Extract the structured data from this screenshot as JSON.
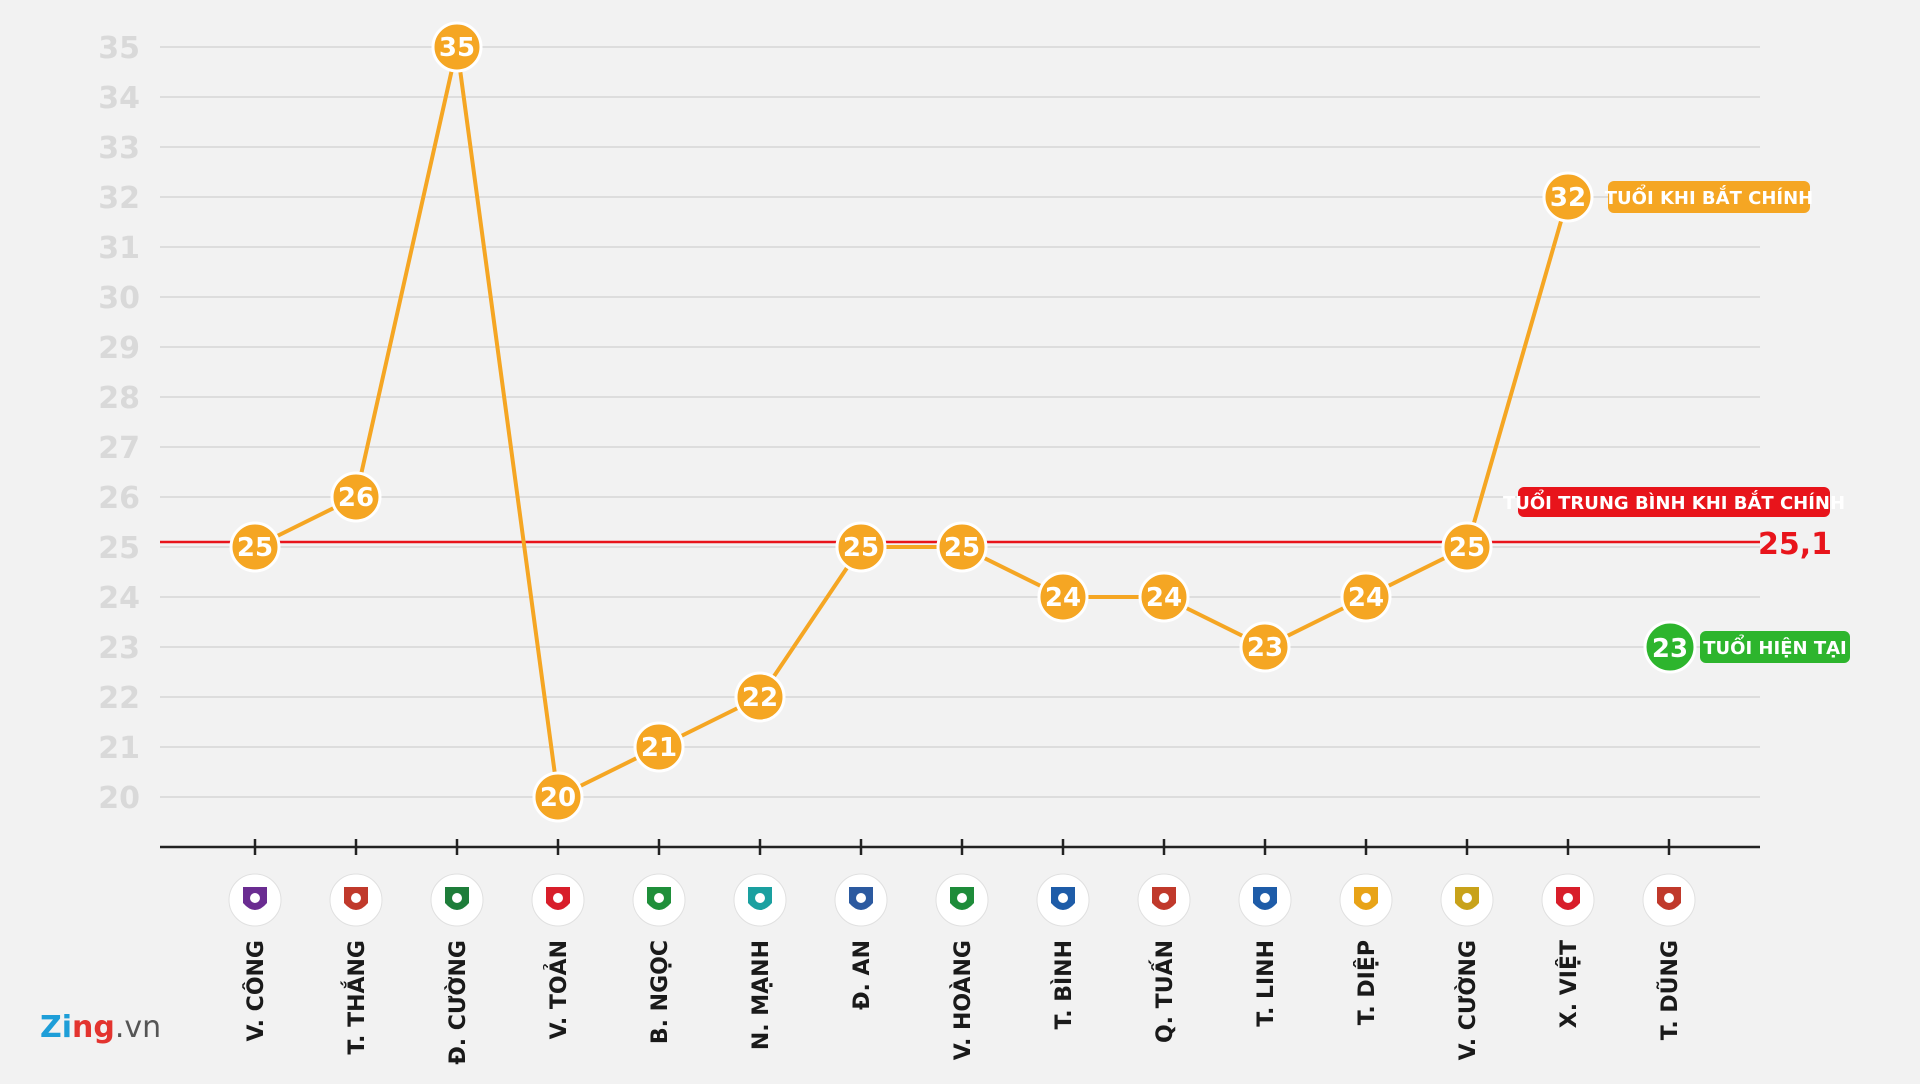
{
  "chart_data": {
    "type": "line",
    "categories": [
      "V. CÔNG",
      "T. THẮNG",
      "Đ. CƯỜNG",
      "V. TOẢN",
      "B. NGỌC",
      "N. MẠNH",
      "Đ. AN",
      "V. HOÀNG",
      "T. BÌNH",
      "Q. TUẤN",
      "T. LINH",
      "T. DIỆP",
      "V. CƯỜNG",
      "X. VIỆT",
      "T. DŨNG"
    ],
    "series": [
      {
        "name": "TUỔI KHI BẮT CHÍNH",
        "values": [
          25,
          26,
          35,
          20,
          21,
          22,
          25,
          25,
          24,
          24,
          23,
          24,
          25,
          32,
          null
        ],
        "color": "#f5a623"
      }
    ],
    "current_age": {
      "label": "TUỔI HIỆN TẠI",
      "value": 23,
      "color": "#2db52d"
    },
    "average": {
      "label": "TUỔI TRUNG BÌNH KHI BẮT CHÍNH",
      "value": 25.1,
      "value_label": "25,1",
      "color": "#e8141b"
    },
    "yticks": [
      20,
      21,
      22,
      23,
      24,
      25,
      26,
      27,
      28,
      29,
      30,
      31,
      32,
      33,
      34,
      35
    ],
    "ylim": [
      19,
      35
    ],
    "grid": true
  },
  "club_logos": [
    "hanoi-club-logo",
    "tphcm-club-logo",
    "becamex-binhduong-logo",
    "hai-phong-logo",
    "hagl-logo",
    "viettel-logo",
    "song-lam-nghe-an-logo",
    "slna-logo",
    "da-nang-logo",
    "hong-linh-ha-tinh-logo",
    "than-quang-ninh-logo",
    "thanh-hoa-logo",
    "quang-nam-logo",
    "nam-dinh-logo",
    "tphcm-club-logo"
  ],
  "brand": {
    "name1": "Zi",
    "name2": "ng",
    "suffix": ".vn"
  }
}
